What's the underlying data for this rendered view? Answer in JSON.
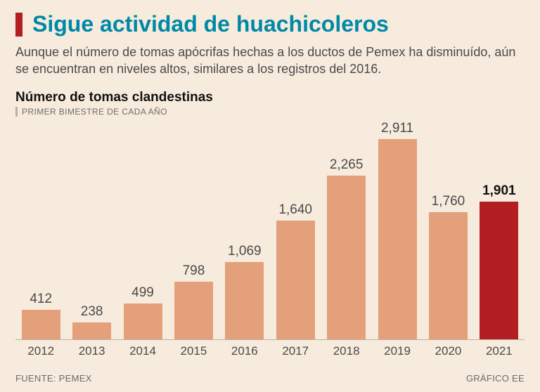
{
  "background_color": "#f7ebdd",
  "title_bar_color": "#b31e23",
  "title": {
    "text": "Sigue actividad de huachicoleros",
    "color": "#0089a7",
    "fontsize": 32
  },
  "subtitle": {
    "text": "Aunque el número de tomas apócrifas hechas a los ductos de Pemex ha disminuído, aún se encuentran en niveles altos, similares a los registros del 2016.",
    "color": "#4a4a4a",
    "fontsize": 18
  },
  "chart": {
    "title": "Número de tomas clandestinas",
    "title_color": "#111111",
    "title_fontsize": 19,
    "subnote": "PRIMER BIMESTRE DE CADA AÑO",
    "subnote_color": "#6b6b6b",
    "subnote_fontsize": 12,
    "subnote_bar_color": "#b9b1a3",
    "type": "bar",
    "bar_width_pct": 76,
    "ymax": 2911,
    "axis_color": "#b9b1a3",
    "categories": [
      "2012",
      "2013",
      "2014",
      "2015",
      "2016",
      "2017",
      "2018",
      "2019",
      "2020",
      "2021"
    ],
    "values": [
      412,
      238,
      499,
      798,
      1069,
      1640,
      2265,
      2911,
      1760,
      1901
    ],
    "value_labels": [
      "412",
      "238",
      "499",
      "798",
      "1,069",
      "1,640",
      "2,265",
      "2,911",
      "1,760",
      "1,901"
    ],
    "bar_colors": [
      "#e3a07b",
      "#e3a07b",
      "#e3a07b",
      "#e3a07b",
      "#e3a07b",
      "#e3a07b",
      "#e3a07b",
      "#e3a07b",
      "#e3a07b",
      "#b31e23"
    ],
    "value_label_colors": [
      "#4a4a4a",
      "#4a4a4a",
      "#4a4a4a",
      "#4a4a4a",
      "#4a4a4a",
      "#4a4a4a",
      "#4a4a4a",
      "#4a4a4a",
      "#4a4a4a",
      "#111111"
    ],
    "value_label_weights": [
      "400",
      "400",
      "400",
      "400",
      "400",
      "400",
      "400",
      "400",
      "400",
      "700"
    ],
    "value_label_fontsize": 19,
    "x_label_color": "#4a4a4a",
    "x_label_fontsize": 17
  },
  "footer": {
    "source": "FUENTE: PEMEX",
    "credit": "GRÁFICO EE",
    "color": "#6b6b6b"
  }
}
